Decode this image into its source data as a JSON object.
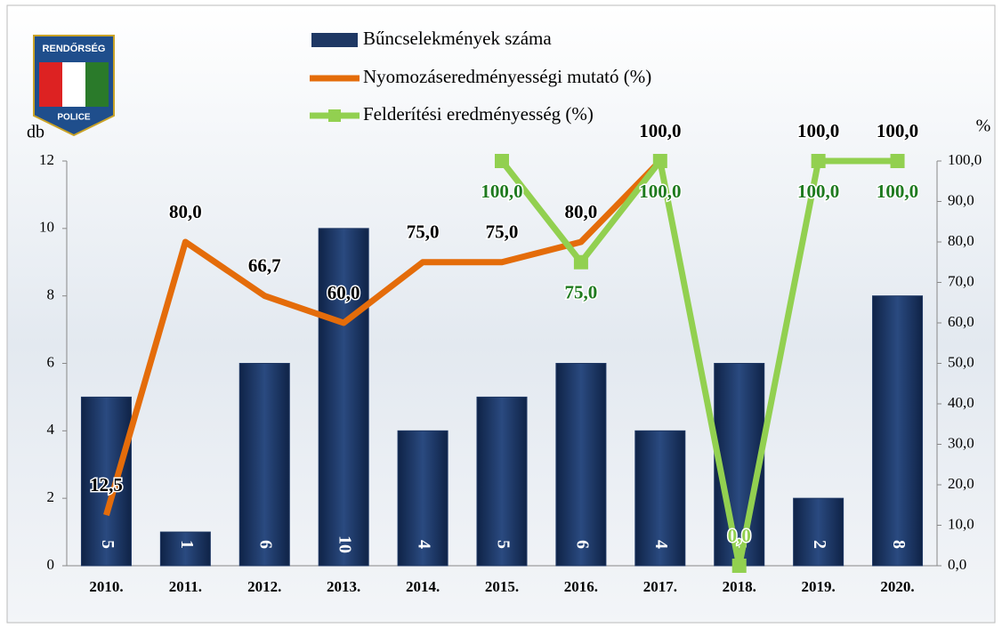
{
  "logo": {
    "top": "RENDŐRSÉG",
    "bottom": "POLICE"
  },
  "chart_data": {
    "type": "bar-line",
    "y_label": "db",
    "y2_label": "%",
    "categories": [
      "2010.",
      "2011.",
      "2012.",
      "2013.",
      "2014.",
      "2015.",
      "2016.",
      "2017.",
      "2018.",
      "2019.",
      "2020."
    ],
    "ylim": [
      0,
      12
    ],
    "yticks": [
      0,
      2,
      4,
      6,
      8,
      10,
      12
    ],
    "y2lim": [
      0,
      100
    ],
    "y2ticks": [
      {
        "value": 0,
        "label": "0,0"
      },
      {
        "value": 10,
        "label": "10,0"
      },
      {
        "value": 20,
        "label": "20,0"
      },
      {
        "value": 30,
        "label": "30,0"
      },
      {
        "value": 40,
        "label": "40,0"
      },
      {
        "value": 50,
        "label": "50,0"
      },
      {
        "value": 60,
        "label": "60,0"
      },
      {
        "value": 70,
        "label": "70,0"
      },
      {
        "value": 80,
        "label": "80,0"
      },
      {
        "value": 90,
        "label": "90,0"
      },
      {
        "value": 100,
        "label": "100,0"
      }
    ],
    "series": [
      {
        "name": "Bűncselekmények száma",
        "type": "bar",
        "color": "#1f3864",
        "values": [
          5,
          1,
          6,
          10,
          4,
          5,
          6,
          4,
          6,
          2,
          8
        ]
      },
      {
        "name": "Nyomozáseredményességi mutató (%)",
        "type": "line",
        "axis": "y2",
        "color": "#e46c0a",
        "label_color": "#000000",
        "values": [
          12.5,
          80,
          66.7,
          60,
          75,
          75,
          80,
          100,
          null,
          100,
          100
        ],
        "value_labels": [
          "12,5",
          "80,0",
          "66,7",
          "60,0",
          "75,0",
          "75,0",
          "80,0",
          "100,0",
          null,
          "100,0",
          "100,0"
        ]
      },
      {
        "name": "Felderítési eredményesség (%)",
        "type": "line",
        "axis": "y2",
        "color": "#92d050",
        "label_color": "#1e7a1e",
        "values": [
          null,
          null,
          null,
          null,
          null,
          100,
          75,
          100,
          0,
          100,
          100
        ],
        "value_labels": [
          null,
          null,
          null,
          null,
          null,
          "100,0",
          "75,0",
          "100,0",
          "0,0",
          "100,0",
          "100,0"
        ]
      }
    ]
  }
}
